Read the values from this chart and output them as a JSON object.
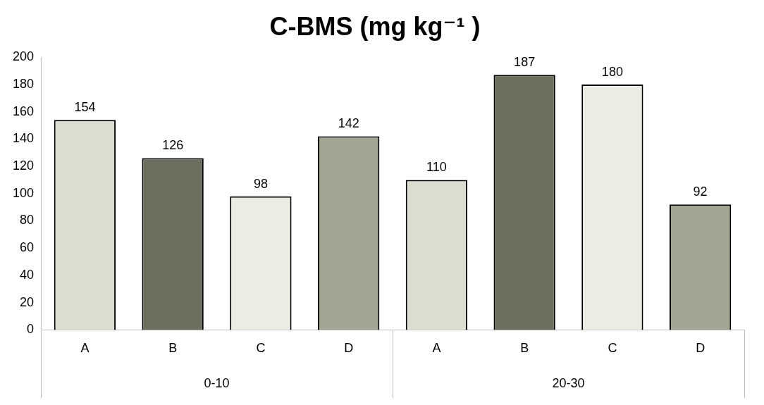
{
  "chart_data": {
    "type": "bar",
    "title": "C-BMS (mg kg⁻¹ )",
    "categories": [
      "A",
      "B",
      "C",
      "D",
      "A",
      "B",
      "C",
      "D"
    ],
    "values": [
      154,
      126,
      98,
      142,
      110,
      187,
      180,
      92
    ],
    "colors": [
      "#dcdcd0",
      "#6e6e5e",
      "#ececE4",
      "#a4a492",
      "#dcdcd0",
      "#6e6e5e",
      "#ececE4",
      "#a4a492"
    ],
    "ylim": [
      0,
      200
    ],
    "yticks": [
      0,
      20,
      40,
      60,
      80,
      100,
      120,
      140,
      160,
      180,
      200
    ],
    "data_labels": true,
    "grid": false,
    "legend": false,
    "annotations": [
      "0-10",
      "20-30"
    ]
  }
}
